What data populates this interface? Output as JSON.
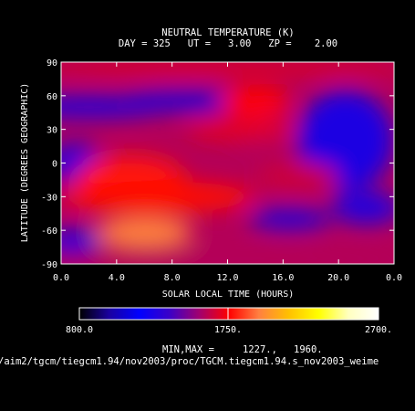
{
  "chart_data": {
    "type": "heatmap",
    "title": "NEUTRAL TEMPERATURE (K)",
    "subtitle": "DAY = 325   UT =   3.00   ZP =    2.00",
    "xlabel": "SOLAR LOCAL TIME (HOURS)",
    "ylabel": "LATITUDE (DEGREES GEOGRAPHIC)",
    "xlim": [
      0,
      24
    ],
    "ylim": [
      -90,
      90
    ],
    "x_ticks": [
      "0.0",
      "4.0",
      "8.0",
      "12.0",
      "16.0",
      "20.0",
      "0.0"
    ],
    "x_tick_values": [
      0,
      4,
      8,
      12,
      16,
      20,
      24
    ],
    "y_ticks": [
      "90",
      "60",
      "30",
      "0",
      "-30",
      "-60",
      "-90"
    ],
    "y_tick_values": [
      90,
      60,
      30,
      0,
      -30,
      -60,
      -90
    ],
    "colorbar": {
      "min_label": "800.0",
      "mid_label": "1750.",
      "max_label": "2700.",
      "range": [
        800,
        2700
      ],
      "colors": [
        "#000000",
        "#1a00a0",
        "#0000ff",
        "#3a00c8",
        "#a00070",
        "#ff0000",
        "#ff8040",
        "#ffc000",
        "#ffff00",
        "#ffffc0",
        "#ffffff"
      ]
    },
    "minmax_label": "MIN,MAX =",
    "min_value": "1227.,",
    "max_value": "1960.",
    "file_path": "/aim2/tgcm/tiegcm1.94/nov2003/proc/TGCM.tiegcm1.94.s_nov2003_weime",
    "field_blobs": [
      {
        "x": 12,
        "y": 85,
        "rx": 14,
        "ry": 6,
        "v": 1700
      },
      {
        "x": 2,
        "y": 50,
        "rx": 6,
        "ry": 10,
        "v": 1310
      },
      {
        "x": 9,
        "y": 55,
        "rx": 5,
        "ry": 10,
        "v": 1320
      },
      {
        "x": 14,
        "y": 30,
        "rx": 3,
        "ry": 12,
        "v": 1540
      },
      {
        "x": 14,
        "y": 55,
        "rx": 2.5,
        "ry": 14,
        "v": 1750
      },
      {
        "x": 13,
        "y": 30,
        "rx": 4,
        "ry": 10,
        "v": 1700
      },
      {
        "x": 20.5,
        "y": 20,
        "rx": 3.5,
        "ry": 45,
        "v": 1280
      },
      {
        "x": 1,
        "y": 0,
        "rx": 2,
        "ry": 18,
        "v": 1320
      },
      {
        "x": 5,
        "y": -15,
        "rx": 4,
        "ry": 22,
        "v": 1780
      },
      {
        "x": 7,
        "y": -30,
        "rx": 7,
        "ry": 14,
        "v": 1760
      },
      {
        "x": 6,
        "y": -62,
        "rx": 3.5,
        "ry": 14,
        "v": 1950
      },
      {
        "x": 17,
        "y": -12,
        "rx": 3,
        "ry": 12,
        "v": 1650
      },
      {
        "x": 16.5,
        "y": -50,
        "rx": 3,
        "ry": 10,
        "v": 1320
      },
      {
        "x": 22,
        "y": -40,
        "rx": 2.5,
        "ry": 15,
        "v": 1300
      },
      {
        "x": 0.8,
        "y": -70,
        "rx": 2,
        "ry": 12,
        "v": 1320
      },
      {
        "x": 12,
        "y": -85,
        "rx": 14,
        "ry": 6,
        "v": 1600
      }
    ],
    "field_base": 1600
  }
}
